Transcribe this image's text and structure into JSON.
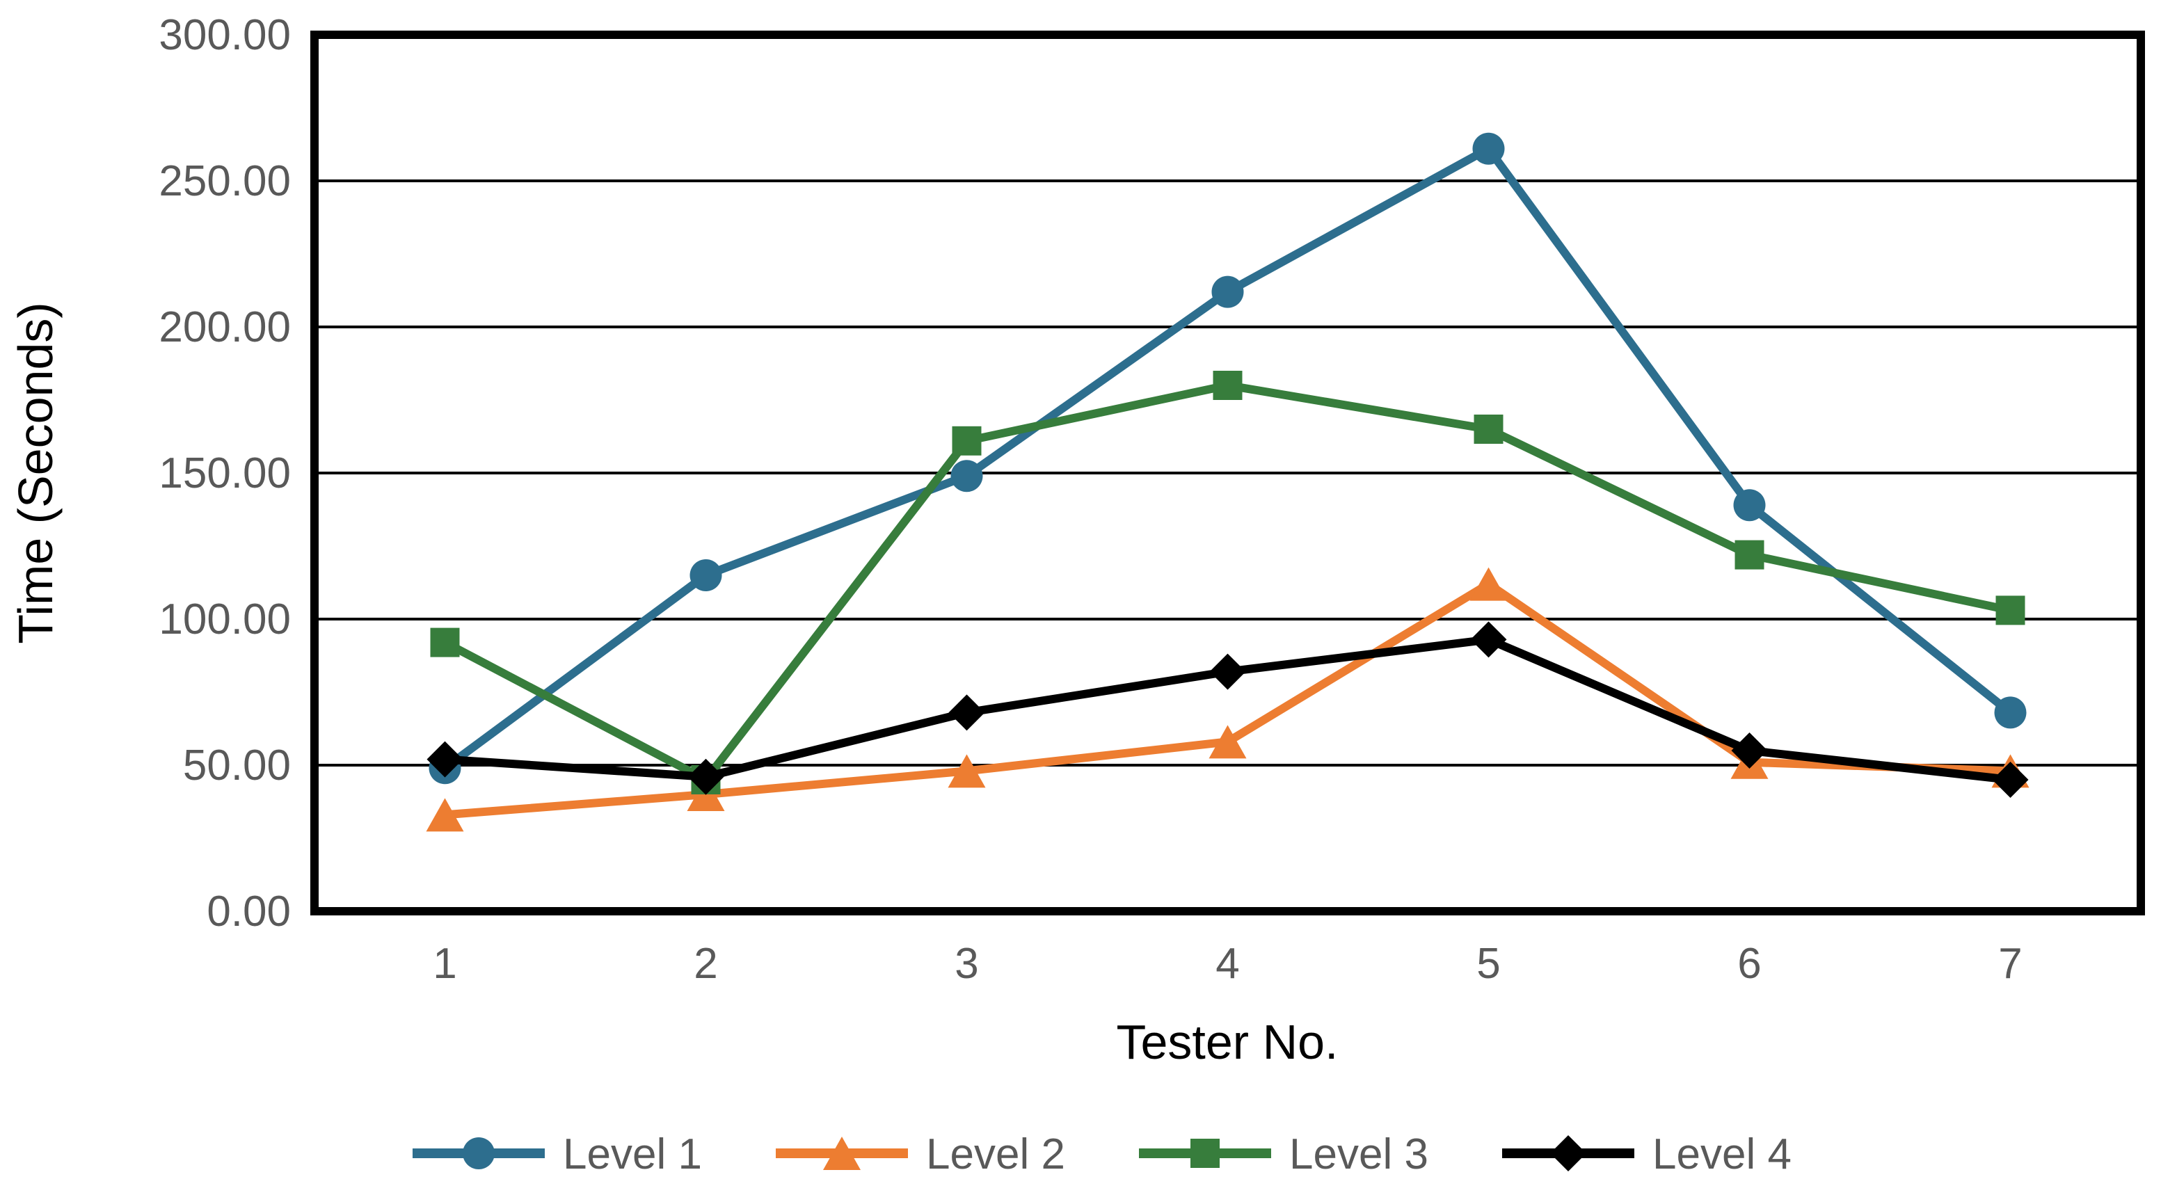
{
  "chart_data": {
    "type": "line",
    "title": "",
    "xlabel": "Tester No.",
    "ylabel": "Time (Seconds)",
    "x_tick_labels": [
      "1",
      "2",
      "3",
      "4",
      "5",
      "6",
      "7"
    ],
    "y_tick_labels": [
      "300.00",
      "250.00",
      "200.00",
      "150.00",
      "100.00",
      "50.00",
      "0.00"
    ],
    "ylim": [
      0,
      300
    ],
    "y_tick_step": 50,
    "grid": "horizontal",
    "plot_border": "black-box",
    "legend_position": "bottom-center",
    "series": [
      {
        "name": "Level 1",
        "marker": "circle",
        "color": "#2D6E8E",
        "values": [
          49,
          115,
          149,
          212,
          261,
          139,
          68
        ]
      },
      {
        "name": "Level 2",
        "marker": "triangle",
        "color": "#ED7D31",
        "values": [
          33,
          40,
          48,
          58,
          112,
          51,
          48
        ]
      },
      {
        "name": "Level 3",
        "marker": "square",
        "color": "#377D3C",
        "values": [
          92,
          45,
          161,
          180,
          165,
          122,
          103
        ]
      },
      {
        "name": "Level 4",
        "marker": "diamond",
        "color": "#000000",
        "values": [
          52,
          46,
          68,
          82,
          93,
          55,
          45
        ]
      }
    ],
    "colors": {
      "tick_text": "#595959",
      "axis_title_text": "#000000",
      "gridline": "#000000",
      "plot_background": "#ffffff"
    }
  }
}
